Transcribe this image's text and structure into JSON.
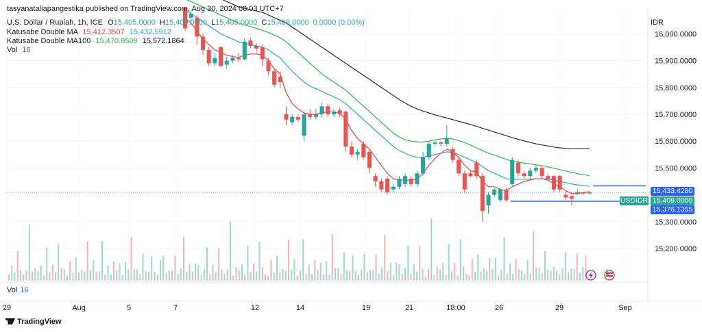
{
  "header": {
    "published": "tasyanataliapangestika published on TradingView.com, Aug 30, 2024 08:03 UTC+7",
    "symbol_line": "U.S. Dollar / Rupiah, 1h, ICE",
    "o_label": "O",
    "o_value": "15,405.0000",
    "h_label": "H",
    "h_value": "15,409.0000",
    "l_label": "L",
    "l_value": "15,405.0000",
    "c_label": "C",
    "c_value": "15,409.0000",
    "change": "0.0000 (0.00%)",
    "ma_label": "Katusabe Double MA",
    "ma_v1": "15,412.3507",
    "ma_v2": "15,432.5912",
    "ma100_label": "Katusabe Double MA100",
    "ma100_v1": "15,470.9509",
    "ma100_v2": "15,572.1864",
    "vol_label": "Vol",
    "vol_value": "16"
  },
  "volume_pane": {
    "label": "Vol",
    "value": "16"
  },
  "currency": "IDR",
  "symbol_badge": "USDIDR",
  "price_badges": {
    "upper": "15,433.4280",
    "current": "15,409.0000",
    "lower": "15,376.1355"
  },
  "colors": {
    "up": "#26a69a",
    "down": "#ef5350",
    "ma_red": "#e0453b",
    "ma_cyan": "#2aa7c9",
    "ma_green": "#33b44a",
    "ma_black": "#2a2a2a",
    "line_blue": "#2962ff"
  },
  "brand": "TradingView",
  "chart_data": {
    "type": "line",
    "title": "U.S. Dollar / Rupiah, 1h, ICE",
    "y_ticks": [
      16000,
      15900,
      15800,
      15700,
      15600,
      15500,
      15300,
      15200
    ],
    "y_tick_labels": [
      "16,000.0000",
      "15,900.0000",
      "15,800.0000",
      "15,700.0000",
      "15,600.0000",
      "15,500.0000",
      "15,300.0000",
      "15,200.0000"
    ],
    "ylim": [
      15126,
      16080
    ],
    "x_tick_labels": [
      "29",
      "Aug",
      "5",
      "7",
      "12",
      "14",
      "19",
      "21",
      "18:00",
      "26",
      "29",
      "Sep"
    ],
    "current_price": 15409,
    "horizontal_levels": [
      15433.428,
      15376.1355
    ],
    "candles": [
      {
        "o": 16095,
        "c": 16020,
        "h": 16100,
        "l": 16010
      },
      {
        "o": 16060,
        "c": 16075,
        "h": 16090,
        "l": 16030
      },
      {
        "o": 16060,
        "c": 15990,
        "h": 16070,
        "l": 15960
      },
      {
        "o": 15990,
        "c": 15940,
        "h": 16000,
        "l": 15920
      },
      {
        "o": 15940,
        "c": 15890,
        "h": 15950,
        "l": 15880
      },
      {
        "o": 15890,
        "c": 15910,
        "h": 15930,
        "l": 15880
      },
      {
        "o": 15950,
        "c": 15880,
        "h": 15955,
        "l": 15875
      },
      {
        "o": 15885,
        "c": 15900,
        "h": 15915,
        "l": 15870
      },
      {
        "o": 15900,
        "c": 15910,
        "h": 15920,
        "l": 15890
      },
      {
        "o": 15910,
        "c": 15905,
        "h": 15930,
        "l": 15895
      },
      {
        "o": 15905,
        "c": 15970,
        "h": 15985,
        "l": 15900
      },
      {
        "o": 15975,
        "c": 15955,
        "h": 15985,
        "l": 15945
      },
      {
        "o": 15955,
        "c": 15945,
        "h": 15965,
        "l": 15930
      },
      {
        "o": 15950,
        "c": 15905,
        "h": 15960,
        "l": 15880
      },
      {
        "o": 15900,
        "c": 15860,
        "h": 15910,
        "l": 15845
      },
      {
        "o": 15860,
        "c": 15810,
        "h": 15870,
        "l": 15800
      },
      {
        "o": 15840,
        "c": 15820,
        "h": 15860,
        "l": 15800
      },
      {
        "o": 15700,
        "c": 15680,
        "h": 15730,
        "l": 15660
      },
      {
        "o": 15670,
        "c": 15690,
        "h": 15700,
        "l": 15660
      },
      {
        "o": 15690,
        "c": 15680,
        "h": 15700,
        "l": 15670
      },
      {
        "o": 15620,
        "c": 15700,
        "h": 15710,
        "l": 15600
      },
      {
        "o": 15700,
        "c": 15690,
        "h": 15720,
        "l": 15680
      },
      {
        "o": 15690,
        "c": 15700,
        "h": 15720,
        "l": 15680
      },
      {
        "o": 15700,
        "c": 15730,
        "h": 15745,
        "l": 15690
      },
      {
        "o": 15730,
        "c": 15700,
        "h": 15740,
        "l": 15690
      },
      {
        "o": 15700,
        "c": 15710,
        "h": 15720,
        "l": 15690
      },
      {
        "o": 15715,
        "c": 15700,
        "h": 15725,
        "l": 15690
      },
      {
        "o": 15710,
        "c": 15580,
        "h": 15715,
        "l": 15560
      },
      {
        "o": 15580,
        "c": 15550,
        "h": 15600,
        "l": 15540
      },
      {
        "o": 15550,
        "c": 15560,
        "h": 15570,
        "l": 15530
      },
      {
        "o": 15590,
        "c": 15540,
        "h": 15600,
        "l": 15530
      },
      {
        "o": 15560,
        "c": 15500,
        "h": 15570,
        "l": 15480
      },
      {
        "o": 15470,
        "c": 15450,
        "h": 15480,
        "l": 15430
      },
      {
        "o": 15450,
        "c": 15420,
        "h": 15460,
        "l": 15410
      },
      {
        "o": 15460,
        "c": 15410,
        "h": 15470,
        "l": 15400
      },
      {
        "o": 15420,
        "c": 15430,
        "h": 15440,
        "l": 15410
      },
      {
        "o": 15430,
        "c": 15460,
        "h": 15470,
        "l": 15420
      },
      {
        "o": 15440,
        "c": 15470,
        "h": 15480,
        "l": 15430
      },
      {
        "o": 15460,
        "c": 15440,
        "h": 15470,
        "l": 15430
      },
      {
        "o": 15440,
        "c": 15480,
        "h": 15490,
        "l": 15430
      },
      {
        "o": 15480,
        "c": 15540,
        "h": 15560,
        "l": 15470
      },
      {
        "o": 15540,
        "c": 15590,
        "h": 15600,
        "l": 15530
      },
      {
        "o": 15590,
        "c": 15595,
        "h": 15605,
        "l": 15580
      },
      {
        "o": 15595,
        "c": 15590,
        "h": 15600,
        "l": 15580
      },
      {
        "o": 15590,
        "c": 15610,
        "h": 15660,
        "l": 15580
      },
      {
        "o": 15570,
        "c": 15530,
        "h": 15580,
        "l": 15520
      },
      {
        "o": 15530,
        "c": 15480,
        "h": 15540,
        "l": 15470
      },
      {
        "o": 15480,
        "c": 15420,
        "h": 15490,
        "l": 15410
      },
      {
        "o": 15480,
        "c": 15470,
        "h": 15490,
        "l": 15465
      },
      {
        "o": 15520,
        "c": 15470,
        "h": 15530,
        "l": 15460
      },
      {
        "o": 15470,
        "c": 15340,
        "h": 15480,
        "l": 15300
      },
      {
        "o": 15360,
        "c": 15400,
        "h": 15410,
        "l": 15330
      },
      {
        "o": 15400,
        "c": 15420,
        "h": 15425,
        "l": 15390
      },
      {
        "o": 15380,
        "c": 15420,
        "h": 15425,
        "l": 15375
      },
      {
        "o": 15420,
        "c": 15380,
        "h": 15425,
        "l": 15375
      },
      {
        "o": 15440,
        "c": 15530,
        "h": 15540,
        "l": 15430
      },
      {
        "o": 15520,
        "c": 15480,
        "h": 15530,
        "l": 15470
      },
      {
        "o": 15480,
        "c": 15470,
        "h": 15490,
        "l": 15460
      },
      {
        "o": 15470,
        "c": 15490,
        "h": 15500,
        "l": 15460
      },
      {
        "o": 15490,
        "c": 15500,
        "h": 15510,
        "l": 15480
      },
      {
        "o": 15500,
        "c": 15470,
        "h": 15510,
        "l": 15460
      },
      {
        "o": 15470,
        "c": 15460,
        "h": 15480,
        "l": 15450
      },
      {
        "o": 15470,
        "c": 15420,
        "h": 15475,
        "l": 15410
      },
      {
        "o": 15470,
        "c": 15420,
        "h": 15475,
        "l": 15410
      },
      {
        "o": 15400,
        "c": 15390,
        "h": 15410,
        "l": 15380
      },
      {
        "o": 15395,
        "c": 15385,
        "h": 15400,
        "l": 15360
      },
      {
        "o": 15405,
        "c": 15409,
        "h": 15420,
        "l": 15400
      },
      {
        "o": 15409,
        "c": 15405,
        "h": 15412,
        "l": 15400
      },
      {
        "o": 15405,
        "c": 15409,
        "h": 15412,
        "l": 15400
      }
    ],
    "ma_fast": [
      16060,
      16040,
      16010,
      15980,
      15960,
      15940,
      15930,
      15920,
      15915,
      15912,
      15920,
      15925,
      15925,
      15920,
      15900,
      15870,
      15850,
      15780,
      15740,
      15720,
      15705,
      15700,
      15700,
      15705,
      15710,
      15708,
      15705,
      15680,
      15640,
      15610,
      15590,
      15570,
      15540,
      15510,
      15480,
      15460,
      15455,
      15455,
      15455,
      15460,
      15480,
      15510,
      15535,
      15555,
      15570,
      15560,
      15540,
      15510,
      15490,
      15485,
      15450,
      15430,
      15430,
      15420,
      15415,
      15430,
      15440,
      15450,
      15455,
      15460,
      15460,
      15455,
      15440,
      15430,
      15415,
      15405,
      15405,
      15408,
      15412
    ],
    "ma_slow": [
      16090,
      16075,
      16060,
      16045,
      16030,
      16015,
      16000,
      15990,
      15980,
      15970,
      15965,
      15960,
      15955,
      15950,
      15940,
      15925,
      15910,
      15885,
      15860,
      15840,
      15820,
      15805,
      15795,
      15785,
      15775,
      15765,
      15755,
      15740,
      15720,
      15700,
      15680,
      15660,
      15640,
      15620,
      15600,
      15580,
      15565,
      15555,
      15545,
      15540,
      15540,
      15545,
      15550,
      15555,
      15560,
      15558,
      15550,
      15540,
      15530,
      15520,
      15505,
      15490,
      15480,
      15470,
      15460,
      15458,
      15458,
      15458,
      15458,
      15460,
      15460,
      15458,
      15455,
      15450,
      15445,
      15440,
      15437,
      15434,
      15432
    ],
    "ma100_fast": [
      16130,
      16120,
      16110,
      16100,
      16090,
      16080,
      16070,
      16060,
      16050,
      16040,
      16033,
      16027,
      16020,
      16013,
      16005,
      15995,
      15985,
      15970,
      15950,
      15930,
      15910,
      15890,
      15870,
      15850,
      15835,
      15820,
      15805,
      15790,
      15770,
      15750,
      15730,
      15710,
      15690,
      15670,
      15650,
      15630,
      15615,
      15605,
      15600,
      15597,
      15596,
      15600,
      15605,
      15608,
      15610,
      15608,
      15602,
      15595,
      15585,
      15575,
      15565,
      15555,
      15548,
      15540,
      15532,
      15526,
      15522,
      15518,
      15515,
      15512,
      15508,
      15504,
      15499,
      15494,
      15489,
      15484,
      15479,
      15475,
      15471
    ],
    "ma100_slow": [
      16190,
      16180,
      16170,
      16160,
      16150,
      16140,
      16130,
      16120,
      16110,
      16100,
      16095,
      16090,
      16085,
      16080,
      16070,
      16060,
      16050,
      16040,
      16025,
      16010,
      15995,
      15980,
      15965,
      15950,
      15935,
      15920,
      15905,
      15890,
      15875,
      15860,
      15845,
      15830,
      15815,
      15800,
      15785,
      15770,
      15755,
      15742,
      15730,
      15720,
      15712,
      15705,
      15698,
      15692,
      15686,
      15680,
      15674,
      15668,
      15662,
      15655,
      15648,
      15641,
      15634,
      15627,
      15620,
      15613,
      15607,
      15601,
      15595,
      15590,
      15586,
      15582,
      15578,
      15575,
      15573,
      15572,
      15572,
      15572,
      15572
    ],
    "volumes": [
      5,
      9,
      4,
      22,
      6,
      3,
      7,
      30,
      4,
      8,
      5,
      12,
      3,
      16,
      6,
      9,
      4,
      25,
      7,
      5,
      3,
      10,
      6,
      14,
      4,
      8,
      5,
      18,
      7,
      11,
      4,
      6,
      20,
      5,
      9,
      3,
      14,
      6,
      8,
      4,
      10,
      5,
      28,
      6,
      9,
      4,
      13,
      7,
      5,
      11,
      6,
      3,
      9,
      16,
      4,
      8,
      6,
      12,
      5,
      7,
      20,
      6,
      9,
      4,
      11,
      8,
      5,
      7,
      16
    ]
  }
}
